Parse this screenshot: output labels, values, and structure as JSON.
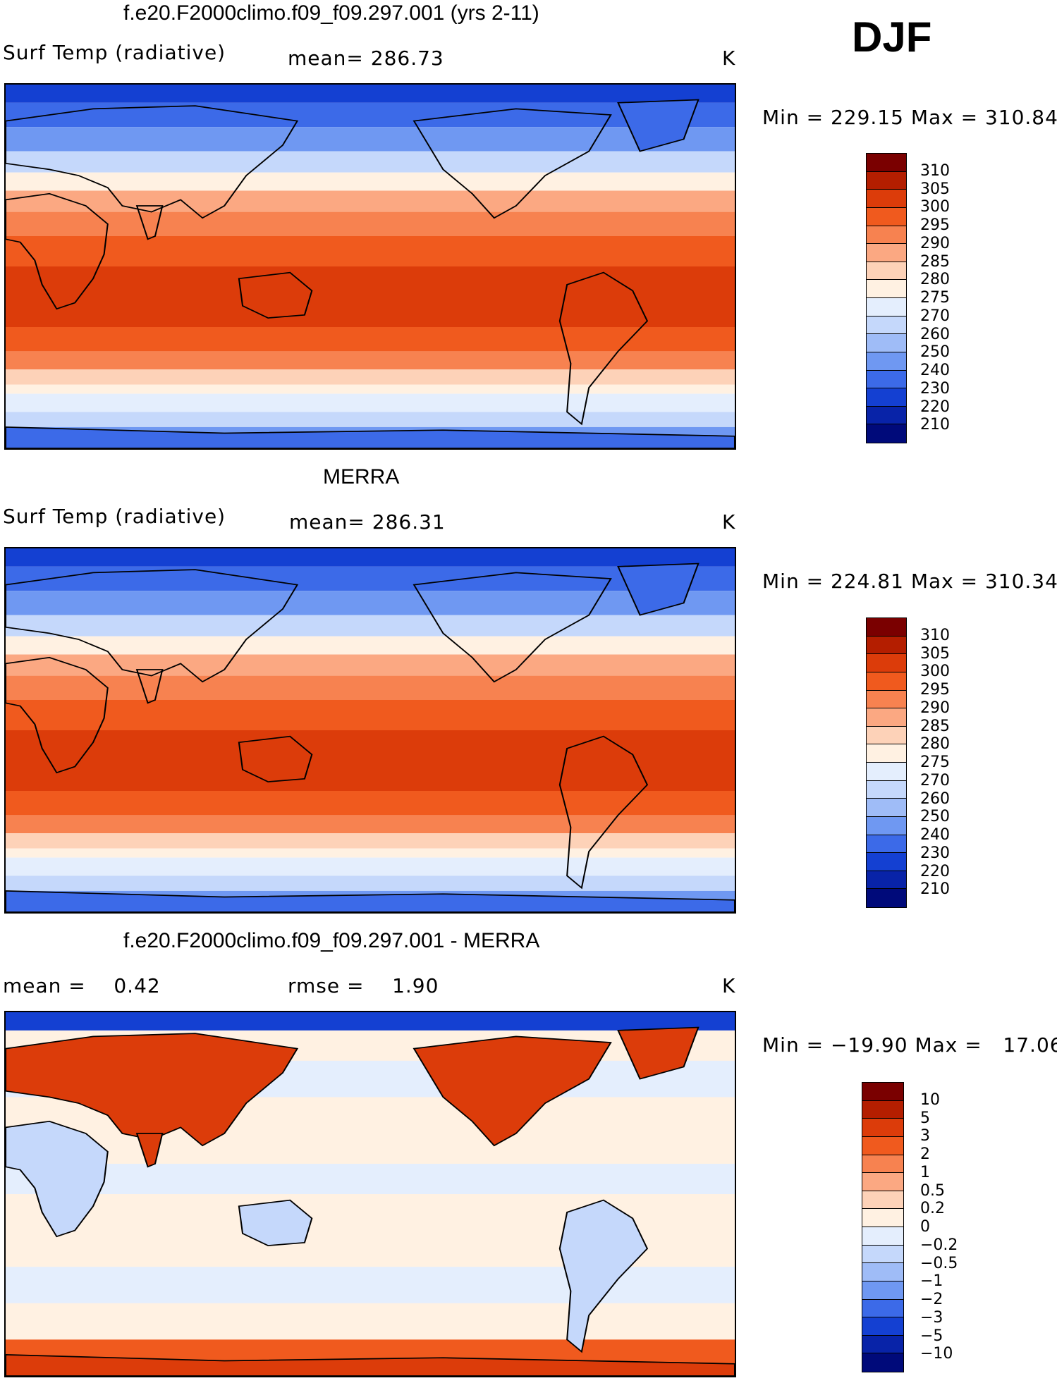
{
  "season": "DJF",
  "panels": [
    {
      "title": "f.e20.F2000climo.f09_f09.297.001 (yrs 2-11)",
      "left": "Surf Temp (radiative)",
      "middle": "mean= 286.73",
      "units": "K",
      "minmax": "Min = 229.15 Max = 310.84",
      "levels": [
        "310",
        "305",
        "300",
        "295",
        "290",
        "285",
        "280",
        "275",
        "270",
        "260",
        "250",
        "240",
        "230",
        "220",
        "210"
      ],
      "colors": [
        "#7a0000",
        "#b41e00",
        "#dc3c0a",
        "#f05a1e",
        "#f78250",
        "#fba882",
        "#fdd2b8",
        "#fff1e2",
        "#e4eefd",
        "#c5d8fb",
        "#9fbcf7",
        "#6f98f2",
        "#3c6ae8",
        "#1440d2",
        "#0823a8",
        "#000a7a"
      ],
      "kind": "temp"
    },
    {
      "title": "MERRA",
      "left": "Surf Temp (radiative)",
      "middle": "mean= 286.31",
      "units": "K",
      "minmax": "Min = 224.81 Max = 310.34",
      "levels": [
        "310",
        "305",
        "300",
        "295",
        "290",
        "285",
        "280",
        "275",
        "270",
        "260",
        "250",
        "240",
        "230",
        "220",
        "210"
      ],
      "colors": [
        "#7a0000",
        "#b41e00",
        "#dc3c0a",
        "#f05a1e",
        "#f78250",
        "#fba882",
        "#fdd2b8",
        "#fff1e2",
        "#e4eefd",
        "#c5d8fb",
        "#9fbcf7",
        "#6f98f2",
        "#3c6ae8",
        "#1440d2",
        "#0823a8",
        "#000a7a"
      ],
      "kind": "temp"
    },
    {
      "title": "f.e20.F2000climo.f09_f09.297.001 - MERRA",
      "left": "mean =    0.42",
      "middle": "rmse =    1.90",
      "units": "K",
      "minmax": "Min = −19.90 Max =   17.06",
      "levels": [
        "10",
        "5",
        "3",
        "2",
        "1",
        "0.5",
        "0.2",
        "0",
        "−0.2",
        "−0.5",
        "−1",
        "−2",
        "−3",
        "−5",
        "−10"
      ],
      "colors": [
        "#7a0000",
        "#b41e00",
        "#dc3c0a",
        "#f05a1e",
        "#f78250",
        "#fba882",
        "#fdd2b8",
        "#fff1e2",
        "#e4eefd",
        "#c5d8fb",
        "#9fbcf7",
        "#6f98f2",
        "#3c6ae8",
        "#1440d2",
        "#0823a8",
        "#000a7a"
      ],
      "kind": "diff"
    }
  ]
}
